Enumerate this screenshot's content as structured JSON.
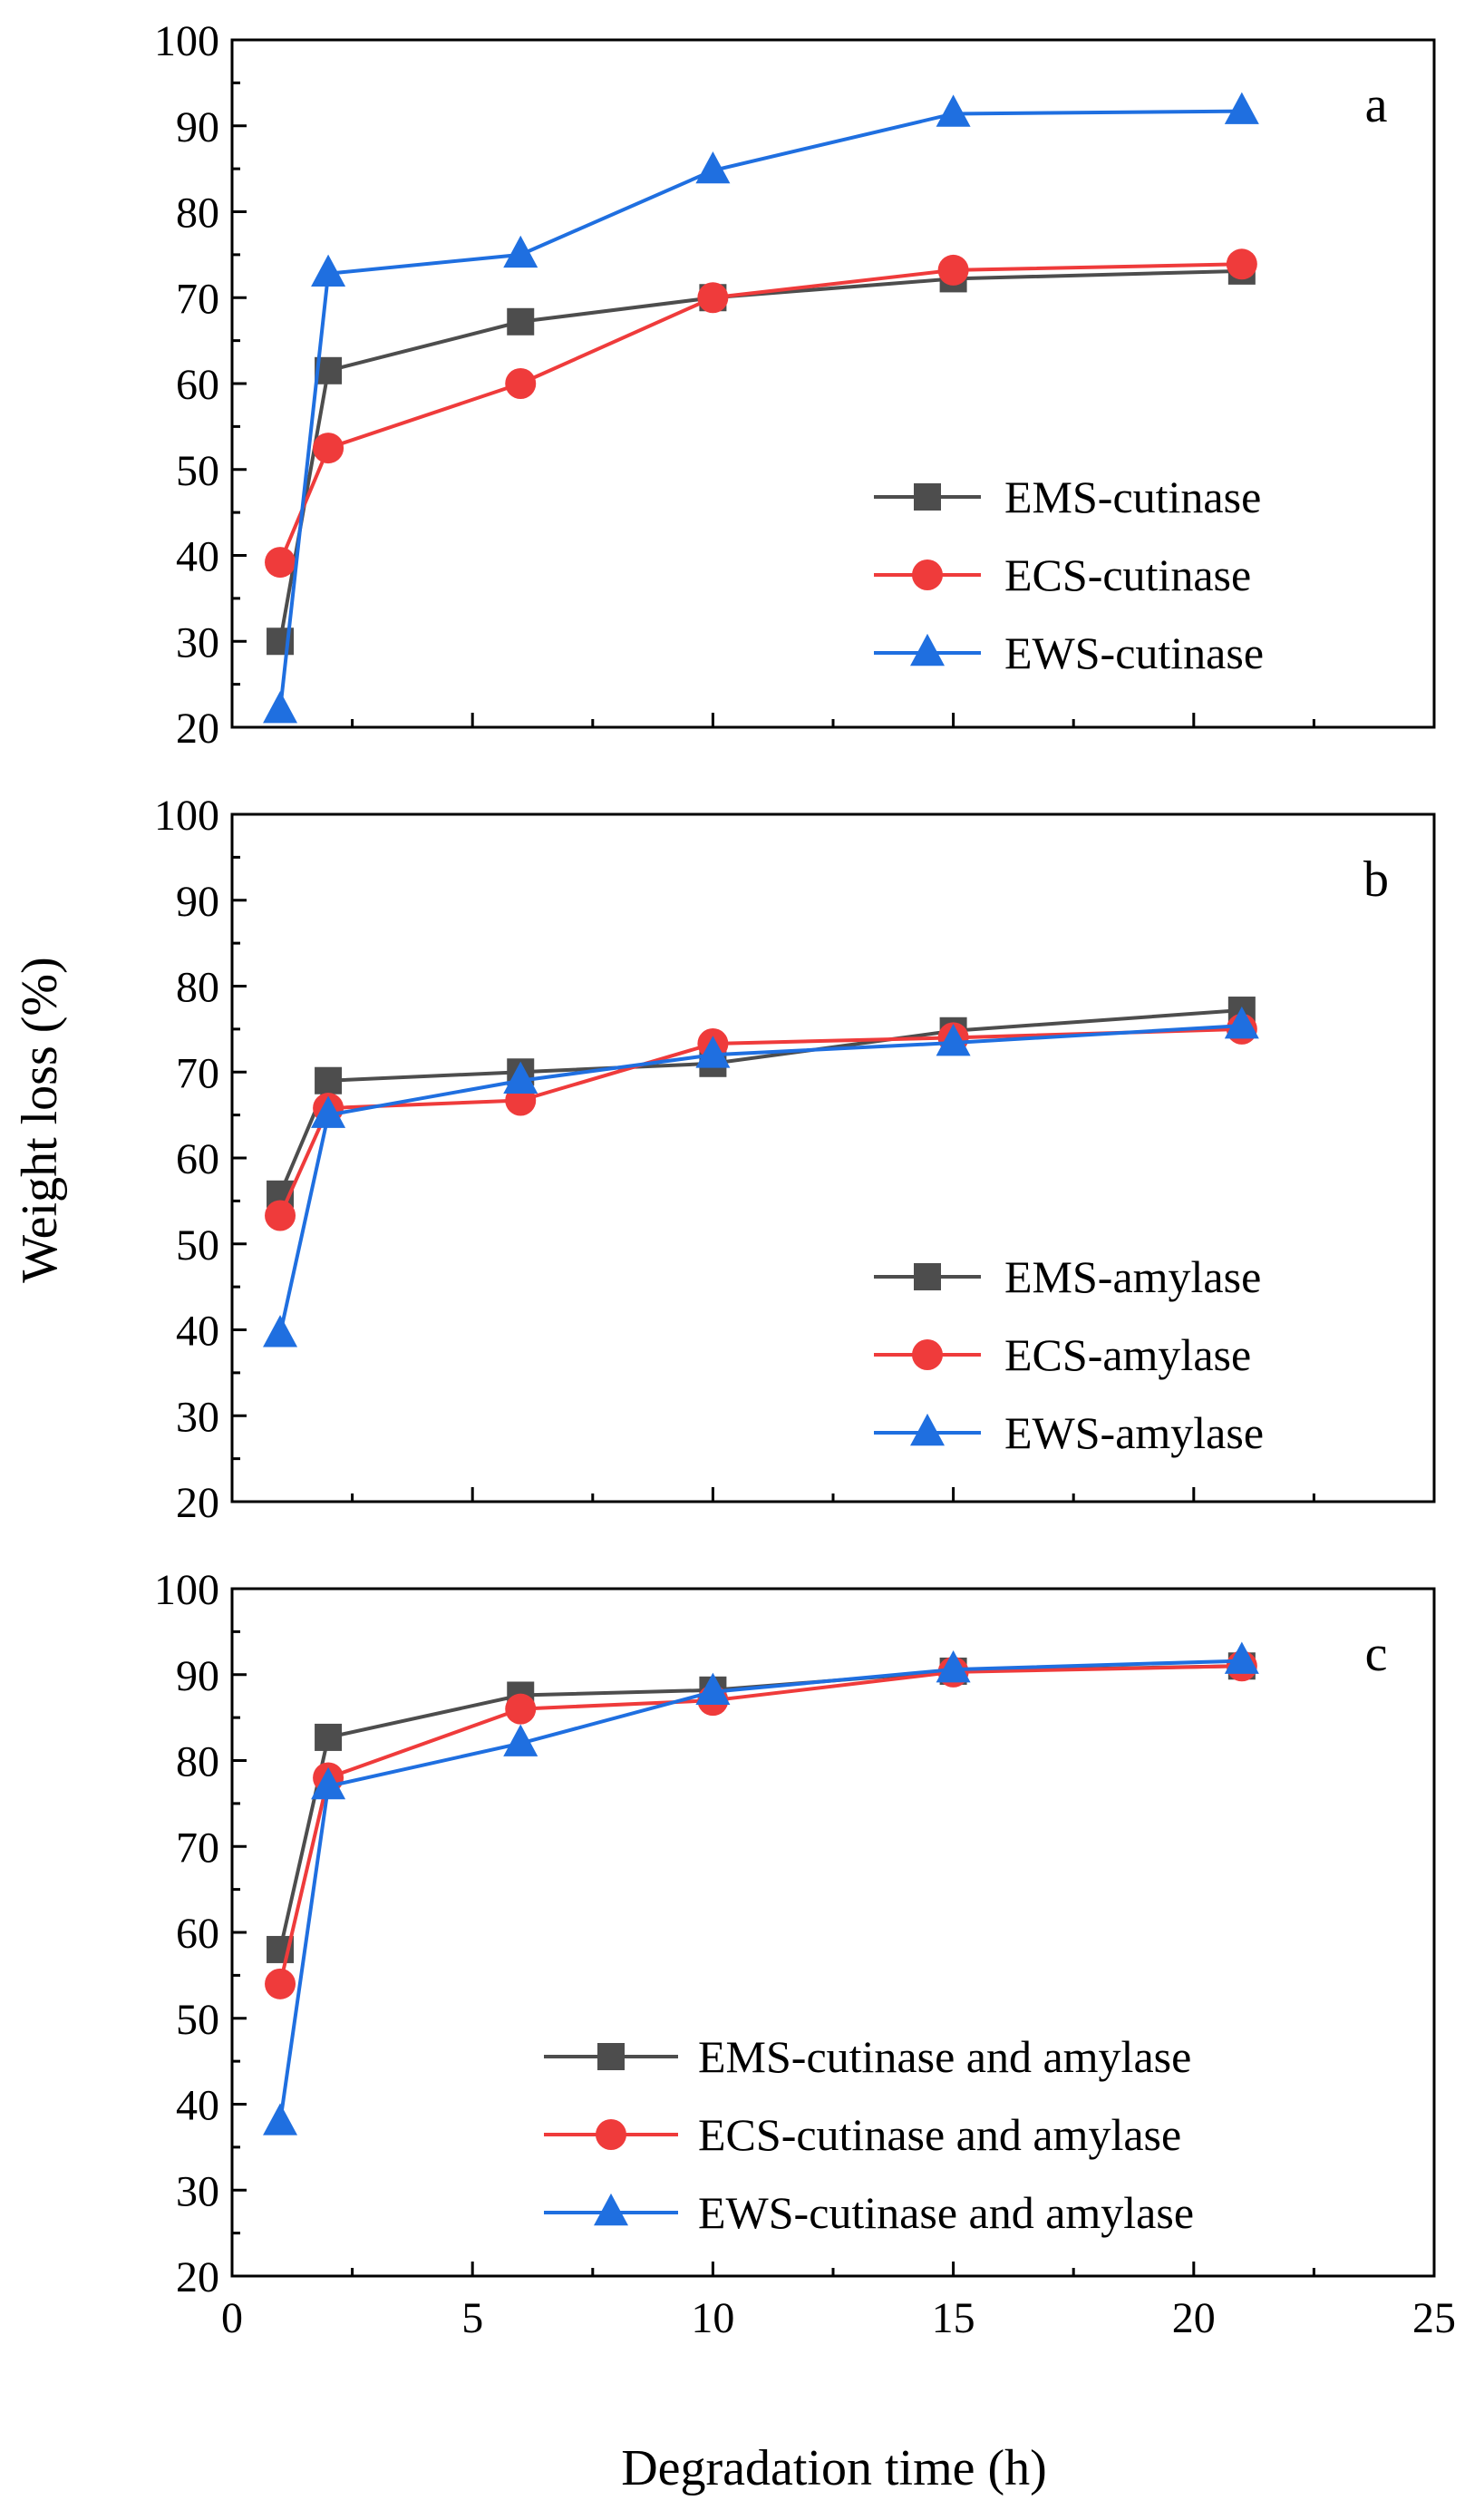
{
  "figure": {
    "y_axis_title": "Weight  loss (%)",
    "x_axis_title": "Degradation time (h)"
  },
  "series_styles": [
    {
      "color": "#4d4d4d",
      "marker": "square"
    },
    {
      "color": "#ef3b3b",
      "marker": "circle"
    },
    {
      "color": "#1f6fe0",
      "marker": "triangle"
    }
  ],
  "chart_data": [
    {
      "type": "line",
      "panel_label": "a",
      "x": [
        1,
        2,
        6,
        10,
        15,
        21
      ],
      "xlim": [
        0,
        25
      ],
      "ylim": [
        20,
        100
      ],
      "xticks": [
        0,
        5,
        10,
        15,
        20,
        25
      ],
      "yticks": [
        20,
        30,
        40,
        50,
        60,
        70,
        80,
        90,
        100
      ],
      "legend_position": "lower-right",
      "series": [
        {
          "name": "EMS-cutinase",
          "values": [
            30,
            61.5,
            67.2,
            70,
            72.2,
            73.1
          ]
        },
        {
          "name": "ECS-cutinase",
          "values": [
            39.2,
            52.5,
            60,
            70,
            73.2,
            73.9
          ]
        },
        {
          "name": "EWS-cutinase",
          "values": [
            22,
            72.8,
            75,
            84.8,
            91.4,
            91.7
          ]
        }
      ]
    },
    {
      "type": "line",
      "panel_label": "b",
      "x": [
        1,
        2,
        6,
        10,
        15,
        21
      ],
      "xlim": [
        0,
        25
      ],
      "ylim": [
        20,
        100
      ],
      "xticks": [
        0,
        5,
        10,
        15,
        20,
        25
      ],
      "yticks": [
        20,
        30,
        40,
        50,
        60,
        70,
        80,
        90,
        100
      ],
      "legend_position": "lower-right",
      "series": [
        {
          "name": "EMS-amylase",
          "values": [
            55.8,
            69,
            70,
            71,
            74.8,
            77.2
          ]
        },
        {
          "name": "ECS-amylase",
          "values": [
            53.3,
            65.8,
            66.7,
            73.3,
            74,
            75
          ]
        },
        {
          "name": "EWS-amylase",
          "values": [
            39.5,
            65,
            69,
            72,
            73.4,
            75.4
          ]
        }
      ]
    },
    {
      "type": "line",
      "panel_label": "c",
      "x": [
        1,
        2,
        6,
        10,
        15,
        21
      ],
      "xlim": [
        0,
        25
      ],
      "ylim": [
        20,
        100
      ],
      "xticks": [
        0,
        5,
        10,
        15,
        20,
        25
      ],
      "yticks": [
        20,
        30,
        40,
        50,
        60,
        70,
        80,
        90,
        100
      ],
      "legend_position": "lower-right",
      "series": [
        {
          "name": "EMS-cutinase and amylase",
          "values": [
            58,
            82.7,
            87.6,
            88.2,
            90.4,
            91
          ]
        },
        {
          "name": "ECS-cutinase and amylase",
          "values": [
            54,
            78,
            86,
            87,
            90.3,
            91
          ]
        },
        {
          "name": "EWS-cutinase and amylase",
          "values": [
            37.9,
            77,
            82,
            88,
            90.6,
            91.6
          ]
        }
      ]
    }
  ]
}
